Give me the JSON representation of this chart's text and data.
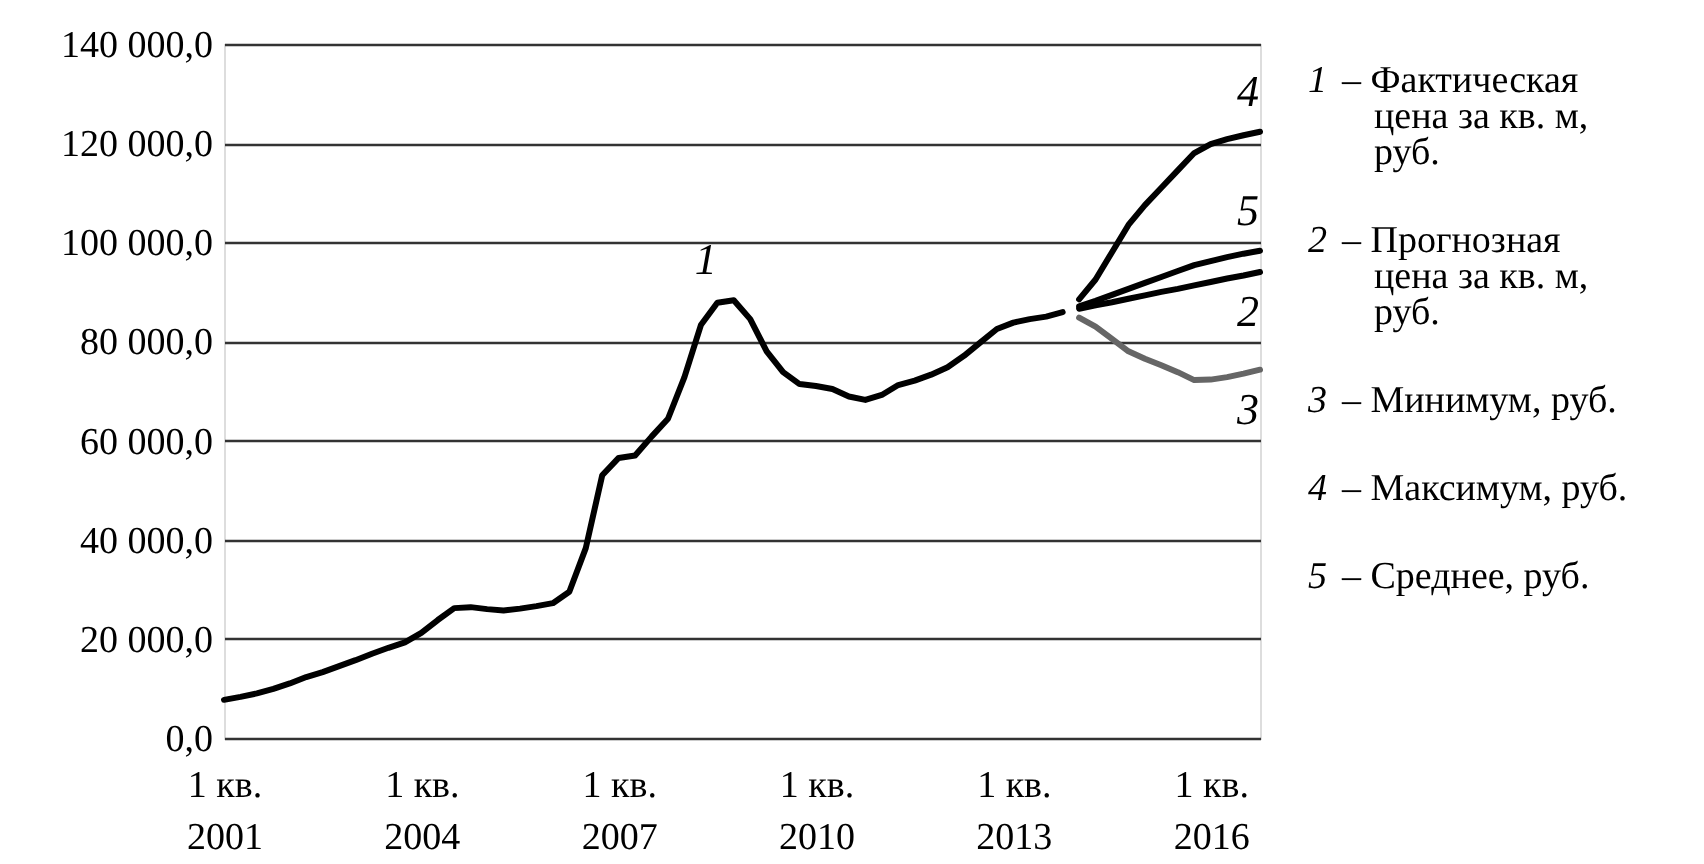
{
  "chart_data": {
    "type": "line",
    "categories": [
      "1 кв. 2001",
      null,
      null,
      null,
      null,
      null,
      null,
      null,
      null,
      null,
      null,
      null,
      "1 кв. 2004",
      null,
      null,
      null,
      null,
      null,
      null,
      null,
      null,
      null,
      null,
      null,
      "1 кв. 2007",
      null,
      null,
      null,
      null,
      null,
      null,
      null,
      null,
      null,
      null,
      null,
      "1 кв. 2010",
      null,
      null,
      null,
      null,
      null,
      null,
      null,
      null,
      null,
      null,
      null,
      "1 кв. 2013",
      null,
      null,
      null,
      null,
      null,
      null,
      null,
      null,
      null,
      null,
      null,
      "1 кв. 2016",
      null,
      null,
      null
    ],
    "ylim": [
      0,
      140000
    ],
    "yticks": [
      {
        "value": 0,
        "label": "0,0"
      },
      {
        "value": 20000,
        "label": "20 000,0"
      },
      {
        "value": 40000,
        "label": "40 000,0"
      },
      {
        "value": 60000,
        "label": "60 000,0"
      },
      {
        "value": 80000,
        "label": "80 000,0"
      },
      {
        "value": 100000,
        "label": "100 000,0"
      },
      {
        "value": 120000,
        "label": "120 000,0"
      },
      {
        "value": 140000,
        "label": "140 000,0"
      }
    ],
    "grid": "y",
    "line_style": "solid",
    "series": [
      {
        "name": "1 – Фактическая цена за кв. м, руб.",
        "color": "#000000",
        "values": [
          7700,
          8300,
          9000,
          9900,
          11000,
          12300,
          13300,
          14500,
          15700,
          17000,
          18200,
          19300,
          21200,
          23800,
          26200,
          26400,
          26000,
          25700,
          26100,
          26600,
          27200,
          29500,
          38300,
          53000,
          56500,
          57000,
          60800,
          64400,
          72800,
          83300,
          87800,
          88300,
          84500,
          78000,
          73800,
          71400,
          71000,
          70400,
          68900,
          68200,
          69200,
          71200,
          72100,
          73300,
          74800,
          77100,
          79800,
          82500,
          83800,
          84500,
          85000,
          85900,
          null,
          null,
          null,
          null,
          null,
          null,
          null,
          null,
          null,
          null,
          null,
          null
        ]
      },
      {
        "name": "2 – Прогнозная цена за кв. м, руб.",
        "color": "#000000",
        "values": [
          null,
          null,
          null,
          null,
          null,
          null,
          null,
          null,
          null,
          null,
          null,
          null,
          null,
          null,
          null,
          null,
          null,
          null,
          null,
          null,
          null,
          null,
          null,
          null,
          null,
          null,
          null,
          null,
          null,
          null,
          null,
          null,
          null,
          null,
          null,
          null,
          null,
          null,
          null,
          null,
          null,
          null,
          null,
          null,
          null,
          null,
          null,
          null,
          null,
          null,
          null,
          null,
          86600,
          87300,
          87900,
          88600,
          89300,
          90000,
          90600,
          91300,
          92000,
          92700,
          93300,
          94000
        ]
      },
      {
        "name": "3 – Минимум, руб.",
        "color": "#666666",
        "values": [
          null,
          null,
          null,
          null,
          null,
          null,
          null,
          null,
          null,
          null,
          null,
          null,
          null,
          null,
          null,
          null,
          null,
          null,
          null,
          null,
          null,
          null,
          null,
          null,
          null,
          null,
          null,
          null,
          null,
          null,
          null,
          null,
          null,
          null,
          null,
          null,
          null,
          null,
          null,
          null,
          null,
          null,
          null,
          null,
          null,
          null,
          null,
          null,
          null,
          null,
          null,
          null,
          84800,
          83000,
          80500,
          78000,
          76500,
          75200,
          73800,
          72200,
          72300,
          72800,
          73500,
          74300
        ]
      },
      {
        "name": "4 – Максимум, руб.",
        "color": "#000000",
        "values": [
          null,
          null,
          null,
          null,
          null,
          null,
          null,
          null,
          null,
          null,
          null,
          null,
          null,
          null,
          null,
          null,
          null,
          null,
          null,
          null,
          null,
          null,
          null,
          null,
          null,
          null,
          null,
          null,
          null,
          null,
          null,
          null,
          null,
          null,
          null,
          null,
          null,
          null,
          null,
          null,
          null,
          null,
          null,
          null,
          null,
          null,
          null,
          null,
          null,
          null,
          null,
          null,
          88500,
          92500,
          98000,
          103500,
          107500,
          111000,
          114500,
          118000,
          119800,
          120800,
          121600,
          122300
        ]
      },
      {
        "name": "5 – Среднее, руб.",
        "color": "#000000",
        "values": [
          null,
          null,
          null,
          null,
          null,
          null,
          null,
          null,
          null,
          null,
          null,
          null,
          null,
          null,
          null,
          null,
          null,
          null,
          null,
          null,
          null,
          null,
          null,
          null,
          null,
          null,
          null,
          null,
          null,
          null,
          null,
          null,
          null,
          null,
          null,
          null,
          null,
          null,
          null,
          null,
          null,
          null,
          null,
          null,
          null,
          null,
          null,
          null,
          null,
          null,
          null,
          null,
          87100,
          88200,
          89400,
          90600,
          91800,
          93000,
          94200,
          95400,
          96200,
          97000,
          97700,
          98300
        ]
      }
    ],
    "annotations": [
      "1",
      "2",
      "3",
      "4",
      "5"
    ]
  }
}
